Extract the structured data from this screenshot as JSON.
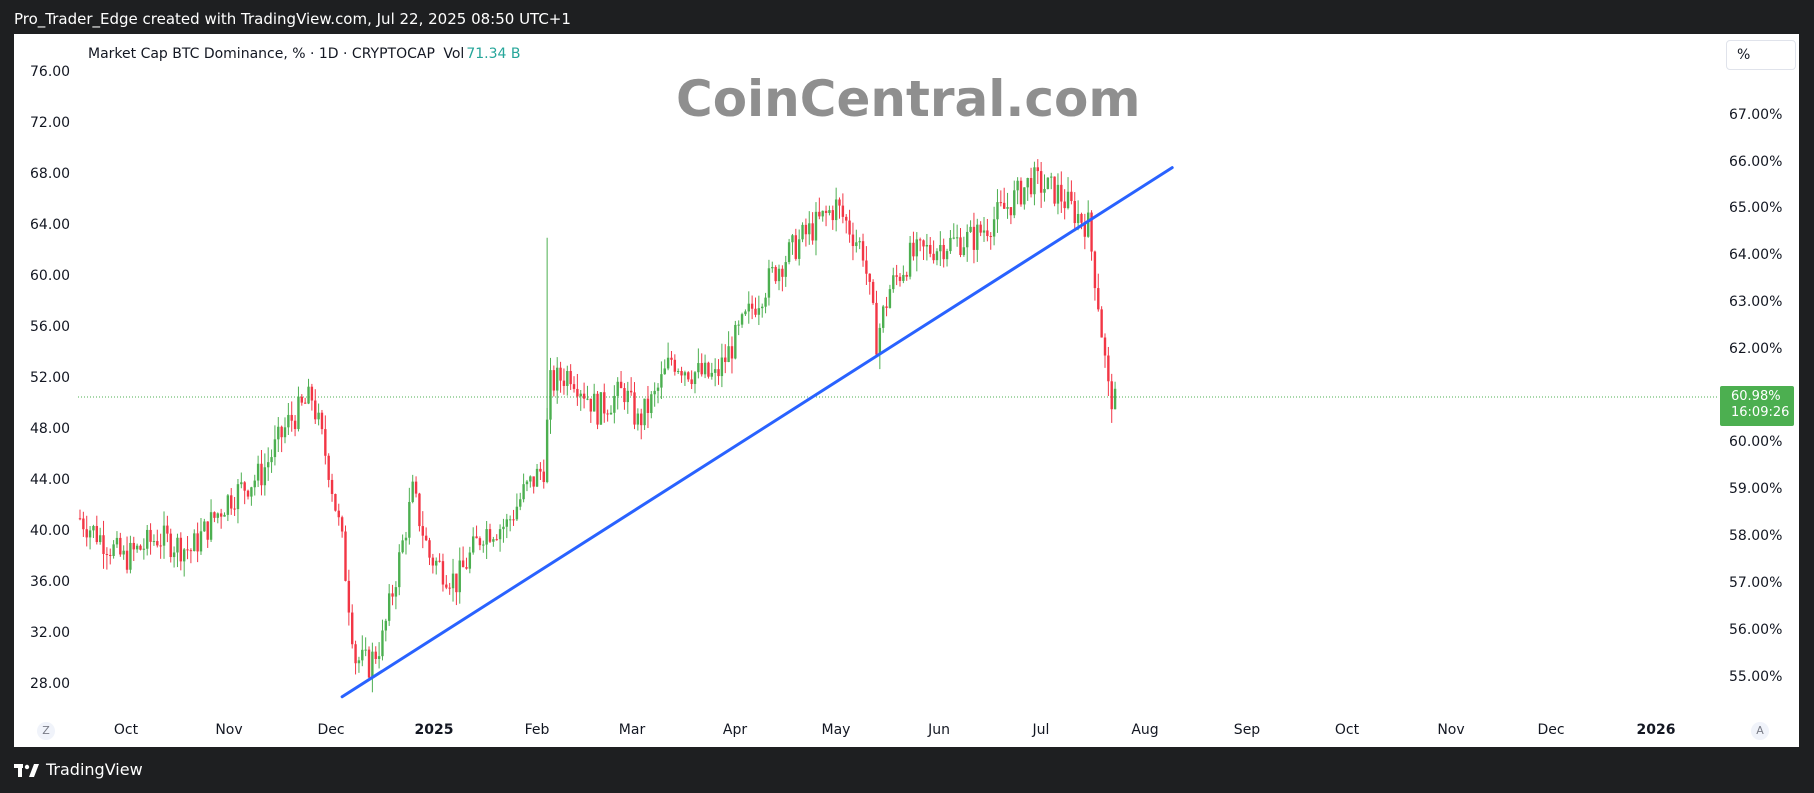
{
  "header": {
    "attribution": "Pro_Trader_Edge created with TradingView.com, Jul 22, 2025 08:50 UTC+1"
  },
  "legend": {
    "symbol": "Market Cap BTC Dominance, % · 1D · CRYPTOCAP",
    "vol_label": "Vol",
    "vol_value": "71.34 B"
  },
  "watermark": "CoinCentral.com",
  "scale_button": "%",
  "left_axis": [
    "76.00",
    "72.00",
    "68.00",
    "64.00",
    "60.00",
    "56.00",
    "52.00",
    "48.00",
    "44.00",
    "40.00",
    "36.00",
    "32.00",
    "28.00"
  ],
  "right_axis": [
    "67.00%",
    "66.00%",
    "65.00%",
    "64.00%",
    "63.00%",
    "62.00%",
    "60.00%",
    "59.00%",
    "58.00%",
    "57.00%",
    "56.00%",
    "55.00%"
  ],
  "x_axis": [
    {
      "label": "Oct",
      "bold": false
    },
    {
      "label": "Nov",
      "bold": false
    },
    {
      "label": "Dec",
      "bold": false
    },
    {
      "label": "2025",
      "bold": true
    },
    {
      "label": "Feb",
      "bold": false
    },
    {
      "label": "Mar",
      "bold": false
    },
    {
      "label": "Apr",
      "bold": false
    },
    {
      "label": "May",
      "bold": false
    },
    {
      "label": "Jun",
      "bold": false
    },
    {
      "label": "Jul",
      "bold": false
    },
    {
      "label": "Aug",
      "bold": false
    },
    {
      "label": "Sep",
      "bold": false
    },
    {
      "label": "Oct",
      "bold": false
    },
    {
      "label": "Nov",
      "bold": false
    },
    {
      "label": "Dec",
      "bold": false
    },
    {
      "label": "2026",
      "bold": true
    }
  ],
  "corner_left": "Z",
  "corner_right": "A",
  "last_price": {
    "value": "60.98%",
    "countdown": "16:09:26"
  },
  "footer": {
    "brand": "TradingView"
  },
  "colors": {
    "up": "#4caf50",
    "down": "#f23645",
    "trendline": "#2962ff",
    "price_line": "#4caf50"
  },
  "chart_data": {
    "type": "candlestick",
    "series_name": "Market Cap BTC Dominance, %",
    "y_axis_left": [
      28,
      76
    ],
    "y_axis_right_pct": [
      55,
      67
    ],
    "trendline": {
      "from": {
        "date": "2024-12-04",
        "value": 27.0
      },
      "to": {
        "date": "2025-08-08",
        "value": 68.5
      }
    },
    "last_price_pct": 60.98,
    "closes_anchor": [
      [
        "2024-09-17",
        41.0
      ],
      [
        "2024-09-30",
        37.8
      ],
      [
        "2024-10-10",
        39.5
      ],
      [
        "2024-10-20",
        38.5
      ],
      [
        "2024-10-31",
        42.5
      ],
      [
        "2024-11-10",
        44.5
      ],
      [
        "2024-11-18",
        48.5
      ],
      [
        "2024-11-25",
        50.5
      ],
      [
        "2024-11-30",
        45.0
      ],
      [
        "2024-12-04",
        39.0
      ],
      [
        "2024-12-08",
        30.0
      ],
      [
        "2024-12-12",
        29.5
      ],
      [
        "2024-12-16",
        31.5
      ],
      [
        "2024-12-22",
        39.0
      ],
      [
        "2024-12-25",
        43.0
      ],
      [
        "2024-12-30",
        38.0
      ],
      [
        "2025-01-07",
        36.0
      ],
      [
        "2025-01-15",
        40.0
      ],
      [
        "2025-01-22",
        40.5
      ],
      [
        "2025-01-27",
        43.0
      ],
      [
        "2025-02-02",
        45.0
      ],
      [
        "2025-02-04",
        51.5
      ],
      [
        "2025-02-10",
        52.5
      ],
      [
        "2025-02-18",
        49.5
      ],
      [
        "2025-02-26",
        51.0
      ],
      [
        "2025-03-02",
        48.5
      ],
      [
        "2025-03-07",
        50.5
      ],
      [
        "2025-03-12",
        53.5
      ],
      [
        "2025-03-18",
        52.5
      ],
      [
        "2025-03-25",
        52.0
      ],
      [
        "2025-03-30",
        54.5
      ],
      [
        "2025-04-05",
        57.5
      ],
      [
        "2025-04-12",
        60.5
      ],
      [
        "2025-04-20",
        63.0
      ],
      [
        "2025-04-30",
        65.5
      ],
      [
        "2025-05-08",
        62.0
      ],
      [
        "2025-05-12",
        55.0
      ],
      [
        "2025-05-16",
        59.0
      ],
      [
        "2025-05-22",
        61.5
      ],
      [
        "2025-06-01",
        62.5
      ],
      [
        "2025-06-10",
        63.0
      ],
      [
        "2025-06-20",
        65.5
      ],
      [
        "2025-06-27",
        67.5
      ],
      [
        "2025-07-05",
        66.5
      ],
      [
        "2025-07-10",
        65.0
      ],
      [
        "2025-07-14",
        64.0
      ],
      [
        "2025-07-17",
        58.0
      ],
      [
        "2025-07-20",
        51.0
      ],
      [
        "2025-07-22",
        50.0
      ]
    ]
  }
}
